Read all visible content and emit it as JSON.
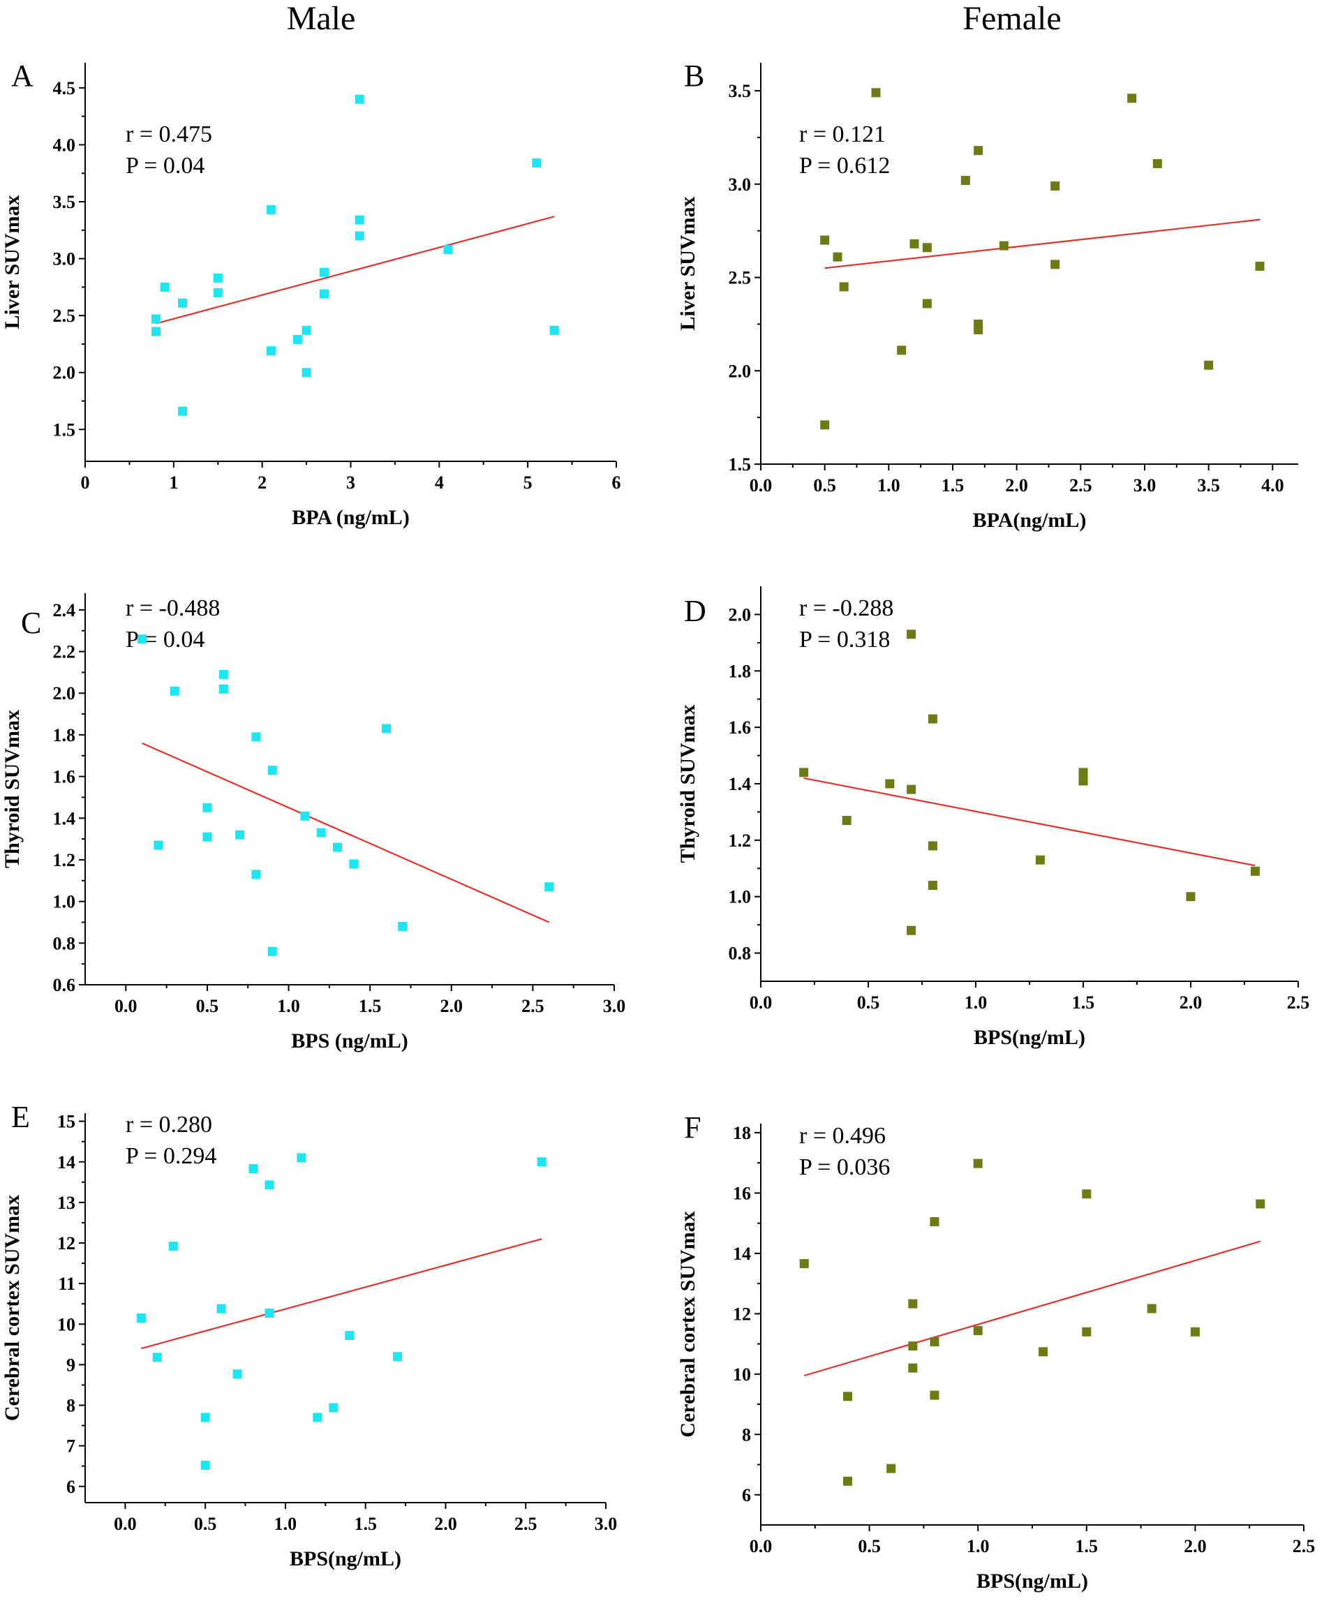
{
  "column_headers": {
    "male": "Male",
    "female": "Female"
  },
  "colors": {
    "male_marker": "#1ee6f0",
    "female_marker": "#6e7a14",
    "fit_line": "#e8302a"
  },
  "chart_data": [
    {
      "type": "scatter",
      "panel": "A",
      "group": "Male",
      "xlabel": "BPA (ng/mL)",
      "ylabel": "Liver SUVmax",
      "xlim": [
        0,
        6
      ],
      "ylim": [
        1.22,
        4.72
      ],
      "xticks": [
        "0",
        "1",
        "2",
        "3",
        "4",
        "5",
        "6"
      ],
      "yticks": [
        "1.5",
        "2.0",
        "2.5",
        "3.0",
        "3.5",
        "4.0",
        "4.5"
      ],
      "stats": {
        "r": "r = 0.475",
        "p": "P = 0.04"
      },
      "fit": {
        "x": [
          0.8,
          5.3
        ],
        "y": [
          2.43,
          3.37
        ]
      },
      "points": [
        [
          0.8,
          2.47
        ],
        [
          0.8,
          2.36
        ],
        [
          0.9,
          2.75
        ],
        [
          1.1,
          2.61
        ],
        [
          1.1,
          1.66
        ],
        [
          1.5,
          2.83
        ],
        [
          1.5,
          2.7
        ],
        [
          2.1,
          3.43
        ],
        [
          2.1,
          2.19
        ],
        [
          2.4,
          2.29
        ],
        [
          2.5,
          2.37
        ],
        [
          2.5,
          2.0
        ],
        [
          2.7,
          2.88
        ],
        [
          2.7,
          2.69
        ],
        [
          3.1,
          4.4
        ],
        [
          3.1,
          3.34
        ],
        [
          3.1,
          3.2
        ],
        [
          4.1,
          3.08
        ],
        [
          5.1,
          3.84
        ],
        [
          5.3,
          2.37
        ]
      ]
    },
    {
      "type": "scatter",
      "panel": "B",
      "group": "Female",
      "xlabel": "BPA(ng/mL)",
      "ylabel": "Liver SUVmax",
      "xlim": [
        0,
        4.2
      ],
      "ylim": [
        1.5,
        3.65
      ],
      "xticks": [
        "0.0",
        "0.5",
        "1.0",
        "1.5",
        "2.0",
        "2.5",
        "3.0",
        "3.5",
        "4.0"
      ],
      "yticks": [
        "1.5",
        "2.0",
        "2.5",
        "3.0",
        "3.5"
      ],
      "stats": {
        "r": "r = 0.121",
        "p": "P = 0.612"
      },
      "fit": {
        "x": [
          0.5,
          3.9
        ],
        "y": [
          2.55,
          2.81
        ]
      },
      "points": [
        [
          0.5,
          2.7
        ],
        [
          0.5,
          1.71
        ],
        [
          0.6,
          2.61
        ],
        [
          0.65,
          2.45
        ],
        [
          0.9,
          3.49
        ],
        [
          1.1,
          2.11
        ],
        [
          1.2,
          2.68
        ],
        [
          1.3,
          2.66
        ],
        [
          1.3,
          2.36
        ],
        [
          1.6,
          3.02
        ],
        [
          1.7,
          3.18
        ],
        [
          1.7,
          2.25
        ],
        [
          1.7,
          2.22
        ],
        [
          1.9,
          2.67
        ],
        [
          2.3,
          2.99
        ],
        [
          2.3,
          2.57
        ],
        [
          2.9,
          3.46
        ],
        [
          3.1,
          3.11
        ],
        [
          3.5,
          2.03
        ],
        [
          3.9,
          2.56
        ]
      ]
    },
    {
      "type": "scatter",
      "panel": "C",
      "group": "Male",
      "xlabel": "BPS (ng/mL)",
      "ylabel": "Thyroid SUVmax",
      "xlim": [
        -0.25,
        3.0
      ],
      "ylim": [
        0.6,
        2.48
      ],
      "xticks": [
        "0.0",
        "0.5",
        "1.0",
        "1.5",
        "2.0",
        "2.5",
        "3.0"
      ],
      "yticks": [
        "0.6",
        "0.8",
        "1.0",
        "1.2",
        "1.4",
        "1.6",
        "1.8",
        "2.0",
        "2.2",
        "2.4"
      ],
      "stats": {
        "r": "r = -0.488",
        "p": "P = 0.04"
      },
      "fit": {
        "x": [
          0.1,
          2.6
        ],
        "y": [
          1.76,
          0.9
        ]
      },
      "points": [
        [
          0.1,
          2.26
        ],
        [
          0.2,
          1.27
        ],
        [
          0.3,
          2.01
        ],
        [
          0.5,
          1.45
        ],
        [
          0.5,
          1.31
        ],
        [
          0.6,
          2.09
        ],
        [
          0.6,
          2.02
        ],
        [
          0.7,
          1.32
        ],
        [
          0.8,
          1.79
        ],
        [
          0.8,
          1.13
        ],
        [
          0.9,
          1.63
        ],
        [
          0.9,
          0.76
        ],
        [
          1.1,
          1.41
        ],
        [
          1.2,
          1.33
        ],
        [
          1.3,
          1.26
        ],
        [
          1.4,
          1.18
        ],
        [
          1.6,
          1.83
        ],
        [
          1.7,
          0.88
        ],
        [
          2.6,
          1.07
        ]
      ]
    },
    {
      "type": "scatter",
      "panel": "D",
      "group": "Female",
      "xlabel": "BPS(ng/mL)",
      "ylabel": "Thyroid SUVmax",
      "xlim": [
        0,
        2.5
      ],
      "ylim": [
        0.7,
        2.1
      ],
      "xticks": [
        "0.0",
        "0.5",
        "1.0",
        "1.5",
        "2.0",
        "2.5"
      ],
      "yticks": [
        "0.8",
        "1.0",
        "1.2",
        "1.4",
        "1.6",
        "1.8",
        "2.0"
      ],
      "stats": {
        "r": "r = -0.288",
        "p": "P = 0.318"
      },
      "fit": {
        "x": [
          0.2,
          2.3
        ],
        "y": [
          1.42,
          1.11
        ]
      },
      "points": [
        [
          0.2,
          1.44
        ],
        [
          0.4,
          1.27
        ],
        [
          0.6,
          1.4
        ],
        [
          0.7,
          1.93
        ],
        [
          0.7,
          1.38
        ],
        [
          0.7,
          0.88
        ],
        [
          0.8,
          1.63
        ],
        [
          0.8,
          1.18
        ],
        [
          0.8,
          1.04
        ],
        [
          1.3,
          1.13
        ],
        [
          1.5,
          1.44
        ],
        [
          1.5,
          1.41
        ],
        [
          2.0,
          1.0
        ],
        [
          2.3,
          1.09
        ]
      ]
    },
    {
      "type": "scatter",
      "panel": "E",
      "group": "Male",
      "xlabel": "BPS(ng/mL)",
      "ylabel": "Cerebral cortex SUVmax",
      "xlim": [
        -0.25,
        3.0
      ],
      "ylim": [
        5.6,
        15.2
      ],
      "xticks": [
        "0.0",
        "0.5",
        "1.0",
        "1.5",
        "2.0",
        "2.5",
        "3.0"
      ],
      "yticks": [
        "6",
        "7",
        "8",
        "9",
        "10",
        "11",
        "12",
        "13",
        "14",
        "15"
      ],
      "stats": {
        "r": "r = 0.280",
        "p": "P = 0.294"
      },
      "fit": {
        "x": [
          0.1,
          2.6
        ],
        "y": [
          9.4,
          12.1
        ]
      },
      "points": [
        [
          0.1,
          10.15
        ],
        [
          0.2,
          9.18
        ],
        [
          0.3,
          11.92
        ],
        [
          0.5,
          7.7
        ],
        [
          0.5,
          6.52
        ],
        [
          0.6,
          10.38
        ],
        [
          0.7,
          8.77
        ],
        [
          0.8,
          13.83
        ],
        [
          0.9,
          13.43
        ],
        [
          0.9,
          10.27
        ],
        [
          1.1,
          14.1
        ],
        [
          1.2,
          7.7
        ],
        [
          1.3,
          7.94
        ],
        [
          1.4,
          9.72
        ],
        [
          1.7,
          9.2
        ],
        [
          2.6,
          14.0
        ]
      ]
    },
    {
      "type": "scatter",
      "panel": "F",
      "group": "Female",
      "xlabel": "BPS(ng/mL)",
      "ylabel": "Cerebral cortex SUVmax",
      "xlim": [
        0,
        2.5
      ],
      "ylim": [
        5.0,
        18.3
      ],
      "xticks": [
        "0.0",
        "0.5",
        "1.0",
        "1.5",
        "2.0",
        "2.5"
      ],
      "yticks": [
        "6",
        "8",
        "10",
        "12",
        "14",
        "16",
        "18"
      ],
      "stats": {
        "r": "r = 0.496",
        "p": "P = 0.036"
      },
      "fit": {
        "x": [
          0.2,
          2.3
        ],
        "y": [
          9.95,
          14.4
        ]
      },
      "points": [
        [
          0.2,
          13.66
        ],
        [
          0.4,
          9.26
        ],
        [
          0.4,
          6.45
        ],
        [
          0.6,
          6.87
        ],
        [
          0.7,
          12.33
        ],
        [
          0.7,
          10.93
        ],
        [
          0.7,
          10.2
        ],
        [
          0.8,
          15.05
        ],
        [
          0.8,
          11.07
        ],
        [
          0.8,
          9.3
        ],
        [
          1.0,
          16.98
        ],
        [
          1.0,
          11.44
        ],
        [
          1.3,
          10.74
        ],
        [
          1.5,
          15.97
        ],
        [
          1.5,
          11.4
        ],
        [
          1.8,
          12.17
        ],
        [
          2.0,
          11.4
        ],
        [
          2.3,
          15.64
        ]
      ]
    }
  ]
}
